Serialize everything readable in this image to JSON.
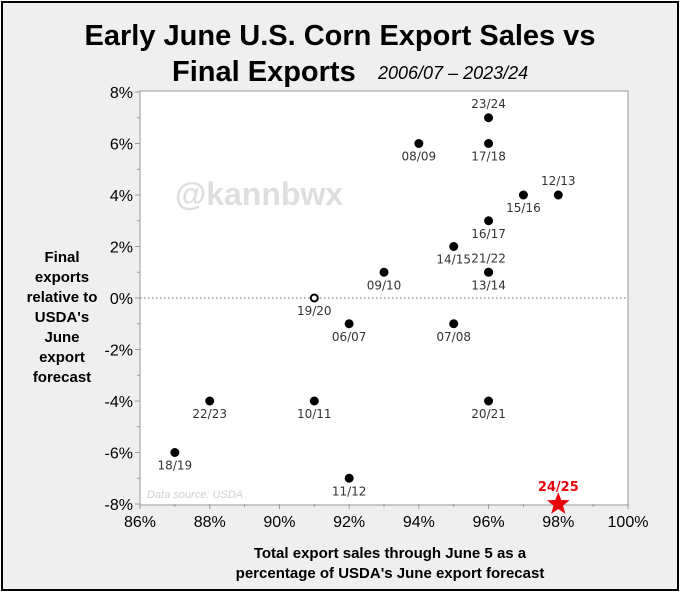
{
  "chart_data": {
    "type": "scatter",
    "title": "Early June U.S. Corn Export Sales vs Final Exports",
    "title_line1": "Early June U.S. Corn Export Sales vs",
    "title_line2": "Final Exports",
    "subtitle": "2006/07 – 2023/24",
    "xlabel_line1": "Total export sales through June 5 as a",
    "xlabel_line2": "percentage of USDA's June export forecast",
    "ylabel_lines": [
      "Final",
      "exports",
      "relative to",
      "USDA's",
      "June",
      "export",
      "forecast"
    ],
    "xlim": [
      86,
      100
    ],
    "ylim": [
      -8,
      8
    ],
    "x_ticks": [
      "86%",
      "88%",
      "90%",
      "92%",
      "94%",
      "96%",
      "98%",
      "100%"
    ],
    "y_ticks": [
      "8%",
      "6%",
      "4%",
      "2%",
      "0%",
      "-2%",
      "-4%",
      "-6%",
      "-8%"
    ],
    "watermark": "@kannbwx",
    "source_note": "Data source: USDA",
    "highlight_color": "#e8000b",
    "points": [
      {
        "label": "06/07",
        "x": 92,
        "y": -1,
        "label_pos": "below"
      },
      {
        "label": "07/08",
        "x": 95,
        "y": -1,
        "label_pos": "below"
      },
      {
        "label": "08/09",
        "x": 94,
        "y": 6,
        "label_pos": "below"
      },
      {
        "label": "09/10",
        "x": 93,
        "y": 1,
        "label_pos": "below"
      },
      {
        "label": "10/11",
        "x": 91,
        "y": -4,
        "label_pos": "below"
      },
      {
        "label": "11/12",
        "x": 92,
        "y": -7,
        "label_pos": "below"
      },
      {
        "label": "12/13",
        "x": 98,
        "y": 4,
        "label_pos": "above"
      },
      {
        "label": "13/14",
        "x": 96,
        "y": 1,
        "label_pos": "below"
      },
      {
        "label": "14/15",
        "x": 95,
        "y": 2,
        "label_pos": "below"
      },
      {
        "label": "15/16",
        "x": 97,
        "y": 4,
        "label_pos": "below"
      },
      {
        "label": "16/17",
        "x": 96,
        "y": 3,
        "label_pos": "below"
      },
      {
        "label": "17/18",
        "x": 96,
        "y": 6,
        "label_pos": "below"
      },
      {
        "label": "18/19",
        "x": 87,
        "y": -6,
        "label_pos": "below"
      },
      {
        "label": "19/20",
        "x": 91,
        "y": 0,
        "label_pos": "below",
        "hollow": true
      },
      {
        "label": "20/21",
        "x": 96,
        "y": -4,
        "label_pos": "below"
      },
      {
        "label": "21/22",
        "x": 96,
        "y": 1,
        "label_pos": "above"
      },
      {
        "label": "22/23",
        "x": 88,
        "y": -4,
        "label_pos": "below"
      },
      {
        "label": "23/24",
        "x": 96,
        "y": 7,
        "label_pos": "above"
      },
      {
        "label": "24/25",
        "x": 98,
        "y": -8,
        "label_pos": "above",
        "highlight": true,
        "marker": "star"
      }
    ]
  }
}
